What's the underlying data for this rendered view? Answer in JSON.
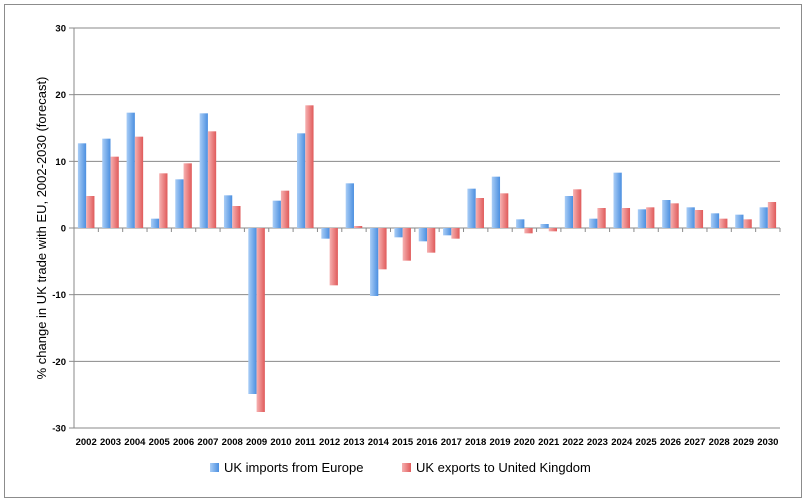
{
  "chart_data": {
    "type": "bar",
    "ylabel": "% change in UK trade with EU, 2002-2030 (forecast)",
    "xlabel": "",
    "ylim": [
      -30,
      30
    ],
    "yticks": [
      30,
      20,
      10,
      0,
      -10,
      -20,
      -30
    ],
    "grid": true,
    "legend_position": "bottom",
    "categories": [
      "2002",
      "2003",
      "2004",
      "2005",
      "2006",
      "2007",
      "2008",
      "2009",
      "2010",
      "2011",
      "2012",
      "2013",
      "2014",
      "2015",
      "2016",
      "2017",
      "2018",
      "2019",
      "2020",
      "2021",
      "2022",
      "2023",
      "2024",
      "2025",
      "2026",
      "2027",
      "2028",
      "2029",
      "2030"
    ],
    "series": [
      {
        "name": "UK imports from Europe",
        "color": "#6fa8e8",
        "values": [
          12.7,
          13.4,
          17.3,
          1.4,
          7.3,
          17.2,
          4.9,
          -24.9,
          4.1,
          14.2,
          -1.6,
          6.7,
          -10.2,
          -1.4,
          -2.0,
          -1.1,
          5.9,
          7.7,
          1.3,
          0.6,
          4.8,
          1.4,
          8.3,
          2.8,
          4.2,
          3.1,
          2.2,
          2.0,
          3.1
        ]
      },
      {
        "name": "UK exports to United Kingdom",
        "color": "#ec7b7b",
        "values": [
          4.8,
          10.7,
          13.7,
          8.2,
          9.7,
          14.5,
          3.3,
          -27.6,
          5.6,
          18.4,
          -8.6,
          0.3,
          -6.2,
          -4.9,
          -3.7,
          -1.6,
          4.5,
          5.2,
          -0.8,
          -0.5,
          5.8,
          3.0,
          3.0,
          3.1,
          3.7,
          2.7,
          1.4,
          1.3,
          3.9
        ]
      }
    ]
  }
}
